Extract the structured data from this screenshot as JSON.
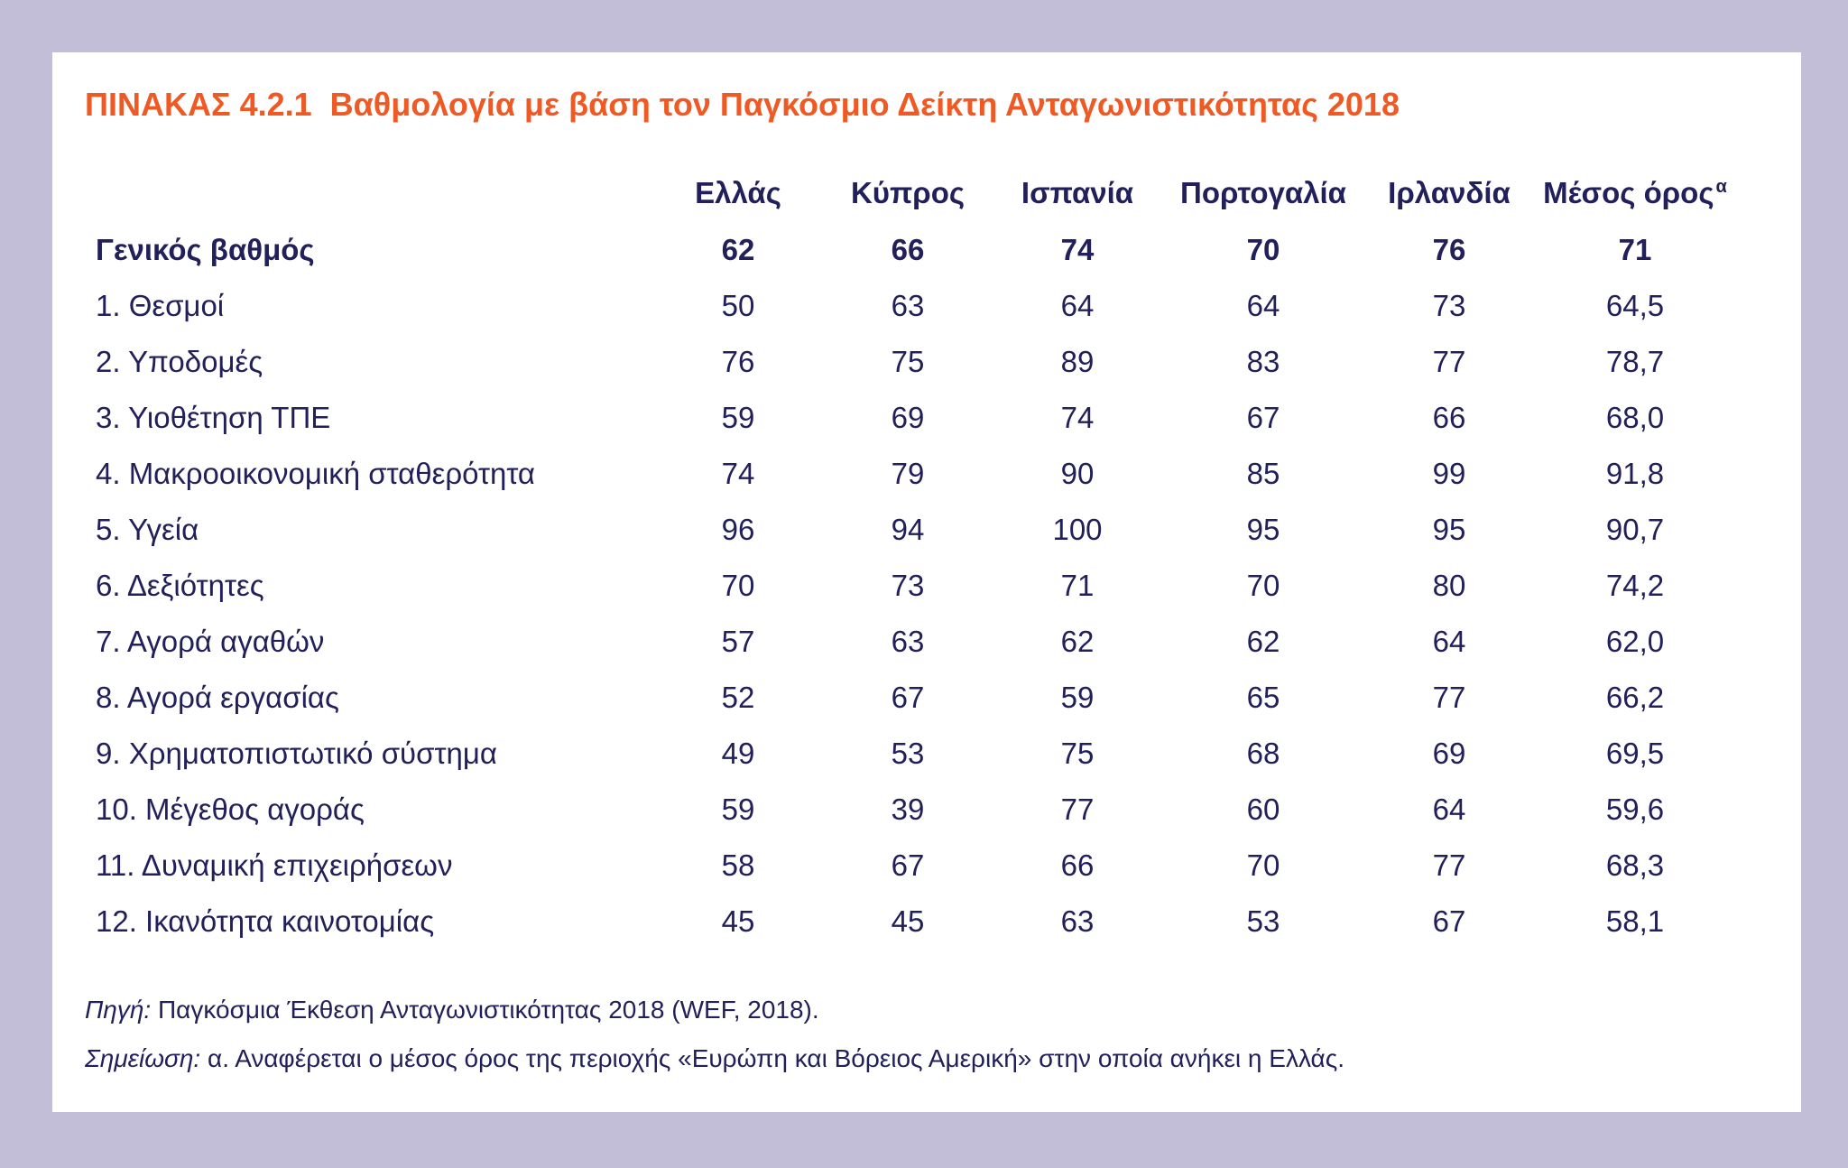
{
  "title": {
    "number": "ΠΙΝΑΚΑΣ 4.2.1",
    "text": "Βαθμολογία με βάση τον Παγκόσμιο Δείκτη Ανταγωνιστικότητας 2018"
  },
  "table": {
    "columns": [
      "Ελλάς",
      "Κύπρος",
      "Ισπανία",
      "Πορτογαλία",
      "Ιρλανδία",
      "Μέσος όρος"
    ],
    "avg_marker": "α",
    "total": {
      "label": "Γενικός βαθμός",
      "values": [
        "62",
        "66",
        "74",
        "70",
        "76",
        "71"
      ]
    },
    "rows": [
      {
        "label": "1. Θεσμοί",
        "values": [
          "50",
          "63",
          "64",
          "64",
          "73",
          "64,5"
        ]
      },
      {
        "label": "2. Υποδομές",
        "values": [
          "76",
          "75",
          "89",
          "83",
          "77",
          "78,7"
        ]
      },
      {
        "label": "3. Υιοθέτηση ΤΠΕ",
        "values": [
          "59",
          "69",
          "74",
          "67",
          "66",
          "68,0"
        ]
      },
      {
        "label": "4. Μακροοικονομική σταθερότητα",
        "values": [
          "74",
          "79",
          "90",
          "85",
          "99",
          "91,8"
        ]
      },
      {
        "label": "5. Υγεία",
        "values": [
          "96",
          "94",
          "100",
          "95",
          "95",
          "90,7"
        ]
      },
      {
        "label": "6. Δεξιότητες",
        "values": [
          "70",
          "73",
          "71",
          "70",
          "80",
          "74,2"
        ]
      },
      {
        "label": "7. Αγορά αγαθών",
        "values": [
          "57",
          "63",
          "62",
          "62",
          "64",
          "62,0"
        ]
      },
      {
        "label": "8. Αγορά εργασίας",
        "values": [
          "52",
          "67",
          "59",
          "65",
          "77",
          "66,2"
        ]
      },
      {
        "label": "9. Χρηματοπιστωτικό σύστημα",
        "values": [
          "49",
          "53",
          "75",
          "68",
          "69",
          "69,5"
        ]
      },
      {
        "label": "10. Μέγεθος αγοράς",
        "values": [
          "59",
          "39",
          "77",
          "60",
          "64",
          "59,6"
        ]
      },
      {
        "label": "11. Δυναμική επιχειρήσεων",
        "values": [
          "58",
          "67",
          "66",
          "70",
          "77",
          "68,3"
        ]
      },
      {
        "label": "12. Ικανότητα καινοτομίας",
        "values": [
          "45",
          "45",
          "63",
          "53",
          "67",
          "58,1"
        ]
      }
    ]
  },
  "notes": {
    "source_lead": "Πηγή:",
    "source_text": "Παγκόσμια Έκθεση Ανταγωνιστικότητας 2018 (WEF, 2018).",
    "note_lead": "Σημείωση:",
    "note_text": "α. Αναφέρεται ο μέσος όρος της περιοχής «Ευρώπη και Βόρειος Αμερική» στην οποία ανήκει η Ελλάς."
  },
  "colors": {
    "page_background": "#c3bed7",
    "panel_background": "#ffffff",
    "title": "#ef5a24",
    "text": "#22205a"
  }
}
